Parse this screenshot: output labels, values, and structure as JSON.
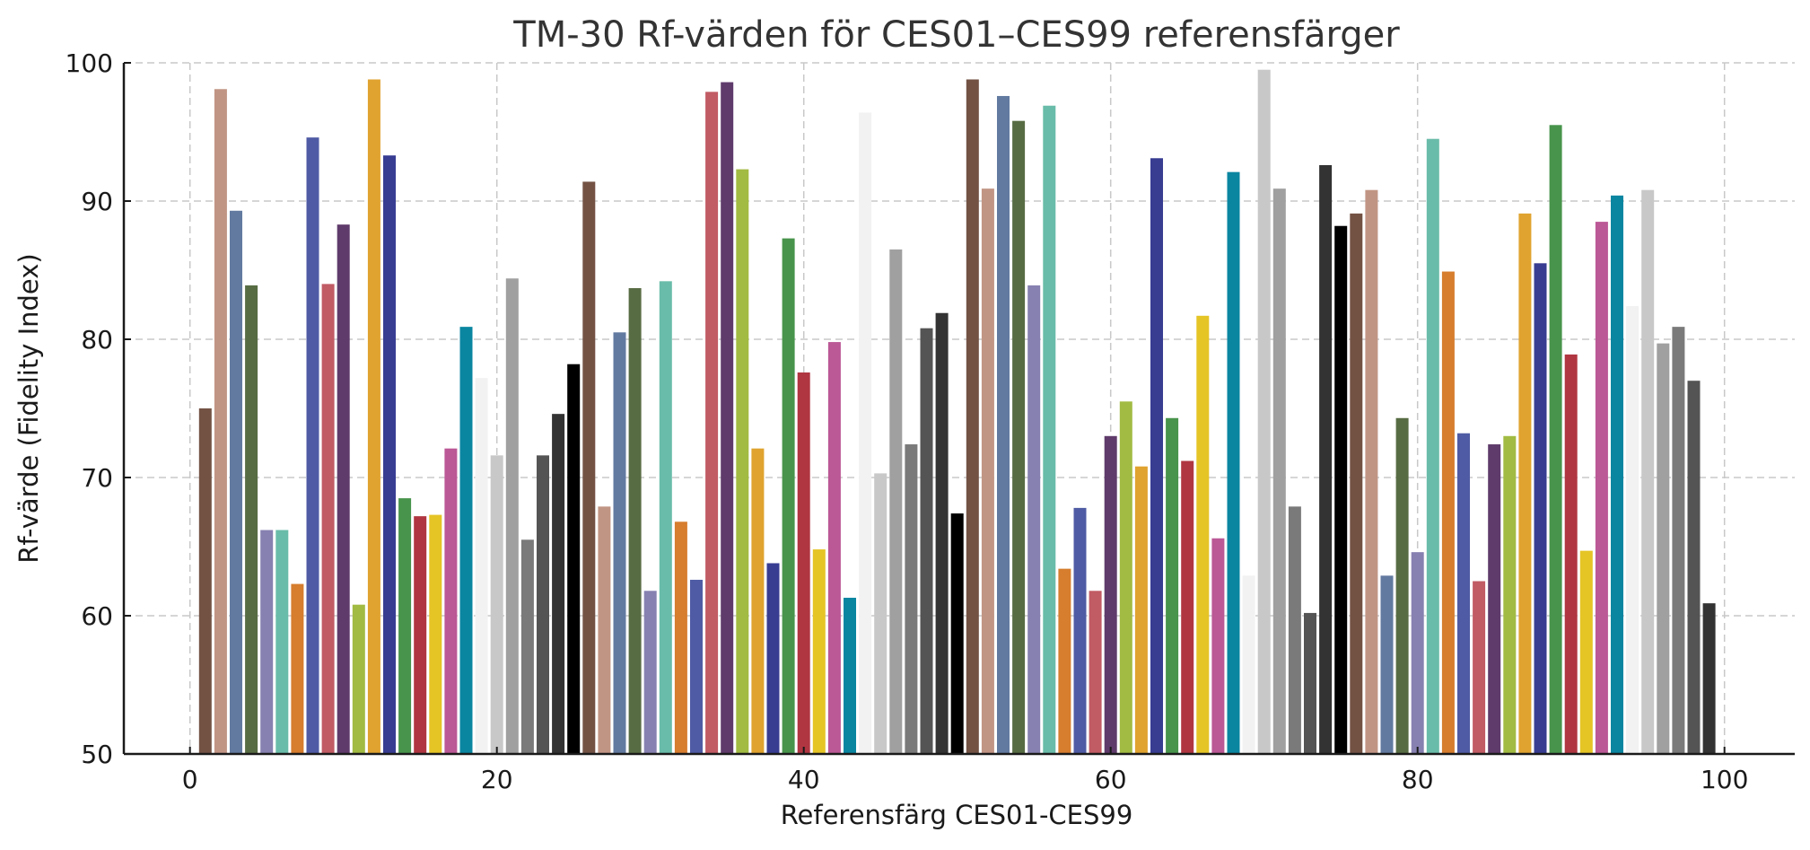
{
  "chart_data": {
    "type": "bar",
    "title": "TM-30 Rf-värden för CES01–CES99 referensfärger",
    "xlabel": "Referensfärg CES01-CES99",
    "ylabel": "Rf-värde (Fidelity Index)",
    "xlim": [
      -4.5,
      104.5
    ],
    "ylim": [
      50,
      100
    ],
    "xticks": [
      0,
      20,
      40,
      60,
      80,
      100
    ],
    "yticks": [
      50,
      60,
      70,
      80,
      90,
      100
    ],
    "grid": true,
    "legend": "none",
    "x": [
      1,
      2,
      3,
      4,
      5,
      6,
      7,
      8,
      9,
      10,
      11,
      12,
      13,
      14,
      15,
      16,
      17,
      18,
      19,
      20,
      21,
      22,
      23,
      24,
      25,
      26,
      27,
      28,
      29,
      30,
      31,
      32,
      33,
      34,
      35,
      36,
      37,
      38,
      39,
      40,
      41,
      42,
      43,
      44,
      45,
      46,
      47,
      48,
      49,
      50,
      51,
      52,
      53,
      54,
      55,
      56,
      57,
      58,
      59,
      60,
      61,
      62,
      63,
      64,
      65,
      66,
      67,
      68,
      69,
      70,
      71,
      72,
      73,
      74,
      75,
      76,
      77,
      78,
      79,
      80,
      81,
      82,
      83,
      84,
      85,
      86,
      87,
      88,
      89,
      90,
      91,
      92,
      93,
      94,
      95,
      96,
      97,
      98,
      99
    ],
    "values": [
      75.0,
      98.1,
      89.3,
      83.9,
      66.2,
      66.2,
      62.3,
      94.6,
      84.0,
      88.3,
      60.8,
      98.8,
      93.3,
      68.5,
      67.2,
      67.3,
      72.1,
      80.9,
      77.2,
      71.6,
      84.4,
      65.5,
      71.6,
      74.6,
      78.2,
      91.4,
      67.9,
      80.5,
      83.7,
      61.8,
      84.2,
      66.8,
      62.6,
      97.9,
      98.6,
      92.3,
      72.1,
      63.8,
      87.3,
      77.6,
      64.8,
      79.8,
      61.3,
      96.4,
      70.3,
      86.5,
      72.4,
      80.8,
      81.9,
      67.4,
      98.8,
      90.9,
      97.6,
      95.8,
      83.9,
      96.9,
      63.4,
      67.8,
      61.8,
      73.0,
      75.5,
      70.8,
      93.1,
      74.3,
      71.2,
      81.7,
      65.6,
      92.1,
      62.9,
      99.5,
      90.9,
      67.9,
      60.2,
      92.6,
      88.2,
      89.1,
      90.8,
      62.9,
      74.3,
      64.6,
      94.5,
      84.9,
      73.2,
      62.5,
      72.4,
      73.0,
      89.1,
      85.5,
      95.5,
      78.9,
      64.7,
      88.5,
      90.4,
      82.4,
      90.8,
      79.7,
      80.9,
      77.0,
      60.9
    ],
    "color_cycle": [
      "#735244",
      "#c19584",
      "#627aa0",
      "#576c43",
      "#8781b1",
      "#69bca9",
      "#d67d2e",
      "#4f5ba4",
      "#c15b64",
      "#5f3b6b",
      "#a2bb43",
      "#e0a32f",
      "#383d92",
      "#48944c",
      "#b03641",
      "#e5c426",
      "#bb5896",
      "#0a86a1",
      "#f2f2f2",
      "#c8c8c8",
      "#a0a0a0",
      "#7a7a7a",
      "#545454",
      "#333333",
      "#000000"
    ]
  }
}
